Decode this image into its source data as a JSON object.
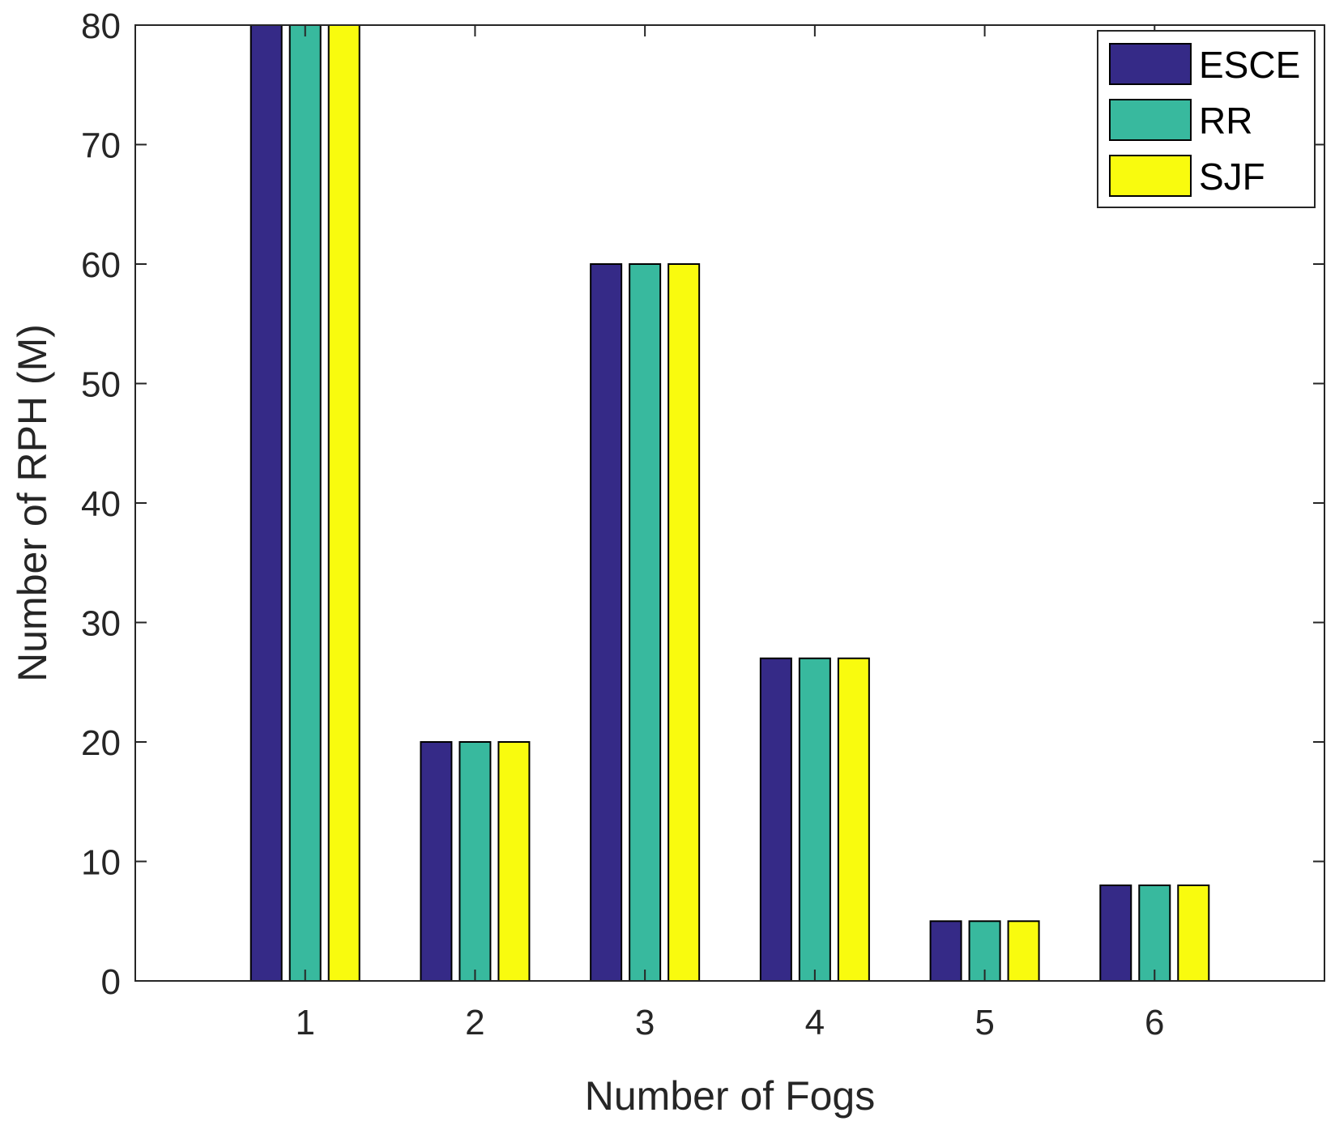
{
  "chart_data": {
    "type": "bar",
    "title": "",
    "xlabel": "Number of Fogs",
    "ylabel": "Number of RPH (M)",
    "categories": [
      "1",
      "2",
      "3",
      "4",
      "5",
      "6"
    ],
    "ylim": [
      0,
      80
    ],
    "yticks": [
      "0",
      "10",
      "20",
      "30",
      "40",
      "50",
      "60",
      "70",
      "80"
    ],
    "grid": false,
    "legend_position": "top-right",
    "series": [
      {
        "name": "ESCE",
        "color": "#352a87",
        "values": [
          80,
          20,
          60,
          27,
          5,
          8
        ]
      },
      {
        "name": "RR",
        "color": "#38b99e",
        "values": [
          80,
          20,
          60,
          27,
          5,
          8
        ]
      },
      {
        "name": "SJF",
        "color": "#f9fb0e",
        "values": [
          80,
          20,
          60,
          27,
          5,
          8
        ]
      }
    ]
  }
}
